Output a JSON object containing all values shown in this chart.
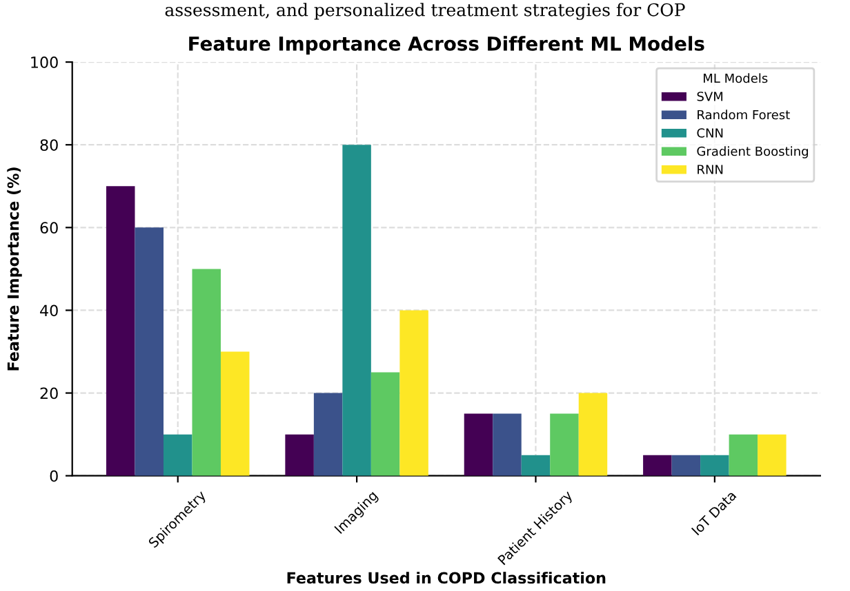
{
  "chart_data": {
    "type": "bar",
    "title": "Feature Importance Across Different ML Models",
    "xlabel": "Features Used in COPD Classification",
    "ylabel": "Feature Importance (%)",
    "legend_title": "ML Models",
    "annotations": [
      "assessment, and personalized treatment strategies for COP"
    ],
    "categories": [
      "Spirometry",
      "Imaging",
      "Patient History",
      "IoT Data"
    ],
    "series": [
      {
        "name": "SVM",
        "color": "#440154",
        "values": [
          70,
          10,
          15,
          5
        ]
      },
      {
        "name": "Random Forest",
        "color": "#3b528b",
        "values": [
          60,
          20,
          15,
          5
        ]
      },
      {
        "name": "CNN",
        "color": "#21918c",
        "values": [
          10,
          80,
          5,
          5
        ]
      },
      {
        "name": "Gradient Boosting",
        "color": "#5ec962",
        "values": [
          50,
          25,
          15,
          10
        ]
      },
      {
        "name": "RNN",
        "color": "#fde725",
        "values": [
          30,
          40,
          20,
          10
        ]
      }
    ],
    "ylim": [
      0,
      100
    ],
    "yticks": [
      0,
      20,
      40,
      60,
      80,
      100
    ],
    "grid": true,
    "legend": "top right"
  }
}
